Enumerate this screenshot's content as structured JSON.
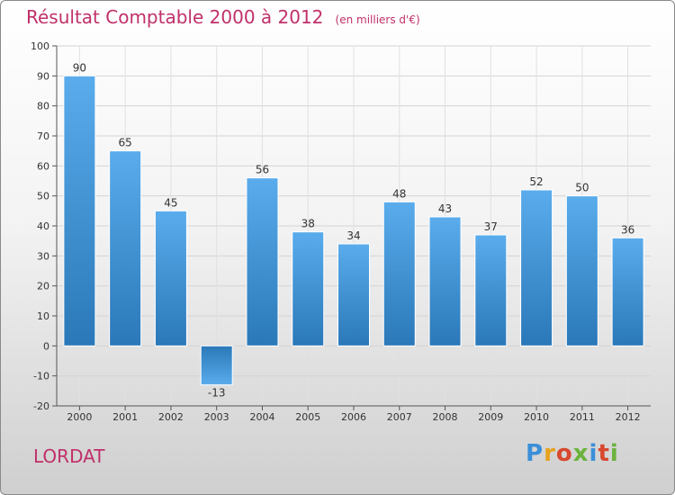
{
  "header": {
    "title": "Résultat Comptable 2000 à 2012",
    "subtitle": "(en milliers d'€)"
  },
  "footer": {
    "city": "LORDAT",
    "logo": "Proxiti"
  },
  "colors": {
    "accent": "#c0306a",
    "bar_light": "#5aacec",
    "bar_dark": "#2a78b8",
    "axis": "#555555"
  },
  "chart_data": {
    "type": "bar",
    "title": "Résultat Comptable 2000 à 2012",
    "subtitle": "(en milliers d'€)",
    "xlabel": "",
    "ylabel": "",
    "categories": [
      "2000",
      "2001",
      "2002",
      "2003",
      "2004",
      "2005",
      "2006",
      "2007",
      "2008",
      "2009",
      "2010",
      "2011",
      "2012"
    ],
    "values": [
      90,
      65,
      45,
      -13,
      56,
      38,
      34,
      48,
      43,
      37,
      52,
      50,
      36
    ],
    "data_labels": [
      "90",
      "65",
      "45",
      "-13",
      "56",
      "38",
      "34",
      "48",
      "43",
      "37",
      "52",
      "50",
      "36"
    ],
    "ylim": [
      -20,
      100
    ],
    "yticks": [
      -20,
      -10,
      0,
      10,
      20,
      30,
      40,
      50,
      60,
      70,
      80,
      90,
      100
    ],
    "ytick_labels": [
      "-20",
      "-10",
      "0",
      "10",
      "20",
      "30",
      "40",
      "50",
      "60",
      "70",
      "80",
      "90",
      "100"
    ],
    "grid": true
  }
}
